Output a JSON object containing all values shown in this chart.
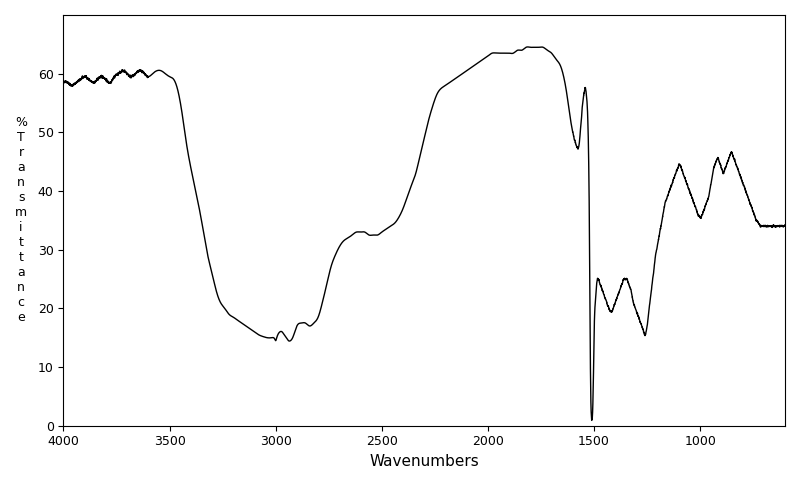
{
  "title": "",
  "xlabel": "Wavenumbers",
  "ylabel_lines": [
    "%",
    "T",
    "r",
    "a",
    "n",
    "s",
    "m",
    "i",
    "t",
    "t",
    "a",
    "n",
    "c",
    "e"
  ],
  "xlim": [
    4000,
    600
  ],
  "ylim": [
    0,
    70
  ],
  "xticks": [
    4000,
    3500,
    3000,
    2500,
    2000,
    1500,
    1000
  ],
  "yticks": [
    0,
    10,
    20,
    30,
    40,
    50,
    60
  ],
  "background_color": "#ffffff",
  "line_color": "#000000",
  "line_width": 1.0,
  "keypoints": [
    [
      4000,
      58.5
    ],
    [
      3980,
      58.5
    ],
    [
      3960,
      58.0
    ],
    [
      3940,
      58.5
    ],
    [
      3920,
      59.0
    ],
    [
      3900,
      59.5
    ],
    [
      3880,
      59.0
    ],
    [
      3860,
      58.5
    ],
    [
      3840,
      59.0
    ],
    [
      3820,
      59.5
    ],
    [
      3800,
      59.0
    ],
    [
      3780,
      58.5
    ],
    [
      3760,
      59.5
    ],
    [
      3740,
      60.0
    ],
    [
      3720,
      60.5
    ],
    [
      3700,
      60.0
    ],
    [
      3680,
      59.5
    ],
    [
      3660,
      60.0
    ],
    [
      3640,
      60.5
    ],
    [
      3620,
      60.0
    ],
    [
      3600,
      59.5
    ],
    [
      3580,
      60.0
    ],
    [
      3560,
      60.5
    ],
    [
      3540,
      60.5
    ],
    [
      3520,
      60.0
    ],
    [
      3500,
      59.5
    ],
    [
      3480,
      59.0
    ],
    [
      3460,
      57.0
    ],
    [
      3440,
      53.0
    ],
    [
      3420,
      48.0
    ],
    [
      3400,
      44.0
    ],
    [
      3380,
      40.5
    ],
    [
      3360,
      37.0
    ],
    [
      3340,
      33.0
    ],
    [
      3320,
      29.0
    ],
    [
      3300,
      26.0
    ],
    [
      3280,
      23.0
    ],
    [
      3260,
      21.0
    ],
    [
      3240,
      20.0
    ],
    [
      3220,
      19.0
    ],
    [
      3200,
      18.5
    ],
    [
      3180,
      18.0
    ],
    [
      3160,
      17.5
    ],
    [
      3140,
      17.0
    ],
    [
      3120,
      16.5
    ],
    [
      3100,
      16.0
    ],
    [
      3080,
      15.5
    ],
    [
      3060,
      15.2
    ],
    [
      3040,
      15.0
    ],
    [
      3020,
      15.0
    ],
    [
      3010,
      15.0
    ],
    [
      3005,
      14.8
    ],
    [
      3000,
      14.5
    ],
    [
      2995,
      15.0
    ],
    [
      2990,
      15.5
    ],
    [
      2980,
      16.0
    ],
    [
      2970,
      16.0
    ],
    [
      2960,
      15.5
    ],
    [
      2950,
      15.0
    ],
    [
      2940,
      14.5
    ],
    [
      2930,
      14.5
    ],
    [
      2920,
      15.0
    ],
    [
      2910,
      16.0
    ],
    [
      2900,
      17.0
    ],
    [
      2880,
      17.5
    ],
    [
      2860,
      17.5
    ],
    [
      2840,
      17.0
    ],
    [
      2820,
      17.5
    ],
    [
      2800,
      18.5
    ],
    [
      2780,
      21.0
    ],
    [
      2760,
      24.0
    ],
    [
      2740,
      27.0
    ],
    [
      2720,
      29.0
    ],
    [
      2700,
      30.5
    ],
    [
      2680,
      31.5
    ],
    [
      2660,
      32.0
    ],
    [
      2640,
      32.5
    ],
    [
      2620,
      33.0
    ],
    [
      2600,
      33.0
    ],
    [
      2580,
      33.0
    ],
    [
      2560,
      32.5
    ],
    [
      2540,
      32.5
    ],
    [
      2520,
      32.5
    ],
    [
      2500,
      33.0
    ],
    [
      2480,
      33.5
    ],
    [
      2460,
      34.0
    ],
    [
      2440,
      34.5
    ],
    [
      2420,
      35.5
    ],
    [
      2400,
      37.0
    ],
    [
      2380,
      39.0
    ],
    [
      2360,
      41.0
    ],
    [
      2340,
      43.0
    ],
    [
      2320,
      46.0
    ],
    [
      2300,
      49.0
    ],
    [
      2280,
      52.0
    ],
    [
      2260,
      54.5
    ],
    [
      2240,
      56.5
    ],
    [
      2220,
      57.5
    ],
    [
      2200,
      58.0
    ],
    [
      2180,
      58.5
    ],
    [
      2160,
      59.0
    ],
    [
      2140,
      59.5
    ],
    [
      2120,
      60.0
    ],
    [
      2100,
      60.5
    ],
    [
      2080,
      61.0
    ],
    [
      2060,
      61.5
    ],
    [
      2040,
      62.0
    ],
    [
      2020,
      62.5
    ],
    [
      2000,
      63.0
    ],
    [
      1980,
      63.5
    ],
    [
      1960,
      63.5
    ],
    [
      1940,
      63.5
    ],
    [
      1920,
      63.5
    ],
    [
      1900,
      63.5
    ],
    [
      1880,
      63.5
    ],
    [
      1860,
      64.0
    ],
    [
      1840,
      64.0
    ],
    [
      1820,
      64.5
    ],
    [
      1800,
      64.5
    ],
    [
      1780,
      64.5
    ],
    [
      1760,
      64.5
    ],
    [
      1740,
      64.5
    ],
    [
      1720,
      64.0
    ],
    [
      1700,
      63.5
    ],
    [
      1680,
      62.5
    ],
    [
      1660,
      61.5
    ],
    [
      1650,
      60.5
    ],
    [
      1640,
      59.0
    ],
    [
      1630,
      57.0
    ],
    [
      1620,
      54.5
    ],
    [
      1610,
      52.0
    ],
    [
      1600,
      50.0
    ],
    [
      1590,
      48.5
    ],
    [
      1580,
      47.5
    ],
    [
      1570,
      48.0
    ],
    [
      1565,
      50.0
    ],
    [
      1560,
      52.0
    ],
    [
      1555,
      54.5
    ],
    [
      1550,
      56.0
    ],
    [
      1545,
      57.0
    ],
    [
      1540,
      57.5
    ],
    [
      1535,
      56.0
    ],
    [
      1530,
      53.0
    ],
    [
      1525,
      45.0
    ],
    [
      1522,
      35.0
    ],
    [
      1520,
      25.0
    ],
    [
      1518,
      15.0
    ],
    [
      1516,
      7.0
    ],
    [
      1514,
      3.0
    ],
    [
      1512,
      1.5
    ],
    [
      1510,
      1.0
    ],
    [
      1508,
      1.5
    ],
    [
      1506,
      3.0
    ],
    [
      1504,
      6.0
    ],
    [
      1502,
      10.0
    ],
    [
      1500,
      15.0
    ],
    [
      1498,
      18.0
    ],
    [
      1496,
      20.0
    ],
    [
      1494,
      21.0
    ],
    [
      1492,
      22.0
    ],
    [
      1490,
      23.0
    ],
    [
      1488,
      24.0
    ],
    [
      1486,
      24.5
    ],
    [
      1484,
      25.0
    ],
    [
      1482,
      25.0
    ],
    [
      1480,
      25.0
    ],
    [
      1475,
      24.5
    ],
    [
      1470,
      24.0
    ],
    [
      1465,
      23.5
    ],
    [
      1460,
      23.0
    ],
    [
      1455,
      22.5
    ],
    [
      1450,
      22.0
    ],
    [
      1445,
      21.5
    ],
    [
      1440,
      21.0
    ],
    [
      1435,
      20.5
    ],
    [
      1430,
      20.0
    ],
    [
      1425,
      19.5
    ],
    [
      1420,
      19.5
    ],
    [
      1415,
      19.5
    ],
    [
      1410,
      20.0
    ],
    [
      1405,
      20.5
    ],
    [
      1400,
      21.0
    ],
    [
      1395,
      21.5
    ],
    [
      1390,
      22.0
    ],
    [
      1385,
      22.5
    ],
    [
      1380,
      23.0
    ],
    [
      1375,
      23.5
    ],
    [
      1370,
      24.0
    ],
    [
      1365,
      24.5
    ],
    [
      1360,
      25.0
    ],
    [
      1355,
      25.0
    ],
    [
      1350,
      25.0
    ],
    [
      1345,
      25.0
    ],
    [
      1340,
      24.5
    ],
    [
      1335,
      24.0
    ],
    [
      1330,
      23.5
    ],
    [
      1325,
      23.0
    ],
    [
      1320,
      22.0
    ],
    [
      1315,
      21.0
    ],
    [
      1310,
      20.5
    ],
    [
      1305,
      20.0
    ],
    [
      1300,
      19.5
    ],
    [
      1295,
      19.0
    ],
    [
      1290,
      18.5
    ],
    [
      1285,
      18.0
    ],
    [
      1280,
      17.5
    ],
    [
      1275,
      17.0
    ],
    [
      1270,
      16.5
    ],
    [
      1265,
      16.0
    ],
    [
      1260,
      15.5
    ],
    [
      1255,
      16.0
    ],
    [
      1250,
      17.0
    ],
    [
      1245,
      18.5
    ],
    [
      1240,
      20.0
    ],
    [
      1235,
      21.5
    ],
    [
      1230,
      23.0
    ],
    [
      1225,
      24.5
    ],
    [
      1220,
      26.0
    ],
    [
      1215,
      27.5
    ],
    [
      1210,
      29.0
    ],
    [
      1205,
      30.0
    ],
    [
      1200,
      31.0
    ],
    [
      1195,
      32.0
    ],
    [
      1190,
      33.0
    ],
    [
      1185,
      34.0
    ],
    [
      1180,
      35.0
    ],
    [
      1175,
      36.0
    ],
    [
      1170,
      37.0
    ],
    [
      1165,
      38.0
    ],
    [
      1160,
      38.5
    ],
    [
      1155,
      39.0
    ],
    [
      1150,
      39.5
    ],
    [
      1145,
      40.0
    ],
    [
      1140,
      40.5
    ],
    [
      1135,
      41.0
    ],
    [
      1130,
      41.5
    ],
    [
      1125,
      42.0
    ],
    [
      1120,
      42.5
    ],
    [
      1115,
      43.0
    ],
    [
      1110,
      43.5
    ],
    [
      1105,
      44.0
    ],
    [
      1100,
      44.5
    ],
    [
      1095,
      44.5
    ],
    [
      1090,
      44.0
    ],
    [
      1085,
      43.5
    ],
    [
      1080,
      43.0
    ],
    [
      1075,
      42.5
    ],
    [
      1070,
      42.0
    ],
    [
      1065,
      41.5
    ],
    [
      1060,
      41.0
    ],
    [
      1055,
      40.5
    ],
    [
      1050,
      40.0
    ],
    [
      1045,
      39.5
    ],
    [
      1040,
      39.0
    ],
    [
      1035,
      38.5
    ],
    [
      1030,
      38.0
    ],
    [
      1025,
      37.5
    ],
    [
      1020,
      37.0
    ],
    [
      1015,
      36.5
    ],
    [
      1010,
      36.0
    ],
    [
      1005,
      35.8
    ],
    [
      1000,
      35.5
    ],
    [
      995,
      35.5
    ],
    [
      990,
      36.0
    ],
    [
      985,
      36.5
    ],
    [
      980,
      37.0
    ],
    [
      975,
      37.5
    ],
    [
      970,
      38.0
    ],
    [
      965,
      38.5
    ],
    [
      960,
      39.0
    ],
    [
      955,
      40.0
    ],
    [
      950,
      41.0
    ],
    [
      945,
      42.0
    ],
    [
      940,
      43.0
    ],
    [
      935,
      44.0
    ],
    [
      930,
      44.5
    ],
    [
      925,
      45.0
    ],
    [
      920,
      45.5
    ],
    [
      915,
      45.5
    ],
    [
      910,
      45.0
    ],
    [
      905,
      44.5
    ],
    [
      900,
      44.0
    ],
    [
      895,
      43.5
    ],
    [
      890,
      43.0
    ],
    [
      885,
      43.5
    ],
    [
      880,
      44.0
    ],
    [
      875,
      44.5
    ],
    [
      870,
      45.0
    ],
    [
      865,
      45.5
    ],
    [
      860,
      46.0
    ],
    [
      855,
      46.5
    ],
    [
      850,
      46.5
    ],
    [
      845,
      46.0
    ],
    [
      840,
      45.5
    ],
    [
      835,
      45.0
    ],
    [
      830,
      44.5
    ],
    [
      825,
      44.0
    ],
    [
      820,
      43.5
    ],
    [
      815,
      43.0
    ],
    [
      810,
      42.5
    ],
    [
      805,
      42.0
    ],
    [
      800,
      41.5
    ],
    [
      795,
      41.0
    ],
    [
      790,
      40.5
    ],
    [
      785,
      40.0
    ],
    [
      780,
      39.5
    ],
    [
      775,
      39.0
    ],
    [
      770,
      38.5
    ],
    [
      765,
      38.0
    ],
    [
      760,
      37.5
    ],
    [
      755,
      37.0
    ],
    [
      750,
      36.5
    ],
    [
      745,
      36.0
    ],
    [
      740,
      35.5
    ],
    [
      735,
      35.0
    ],
    [
      730,
      34.8
    ],
    [
      725,
      34.5
    ],
    [
      720,
      34.3
    ],
    [
      715,
      34.0
    ],
    [
      710,
      34.0
    ],
    [
      705,
      34.0
    ],
    [
      700,
      34.0
    ],
    [
      695,
      34.0
    ],
    [
      690,
      34.0
    ],
    [
      685,
      34.0
    ],
    [
      680,
      34.0
    ],
    [
      675,
      34.0
    ],
    [
      670,
      34.0
    ],
    [
      665,
      34.0
    ],
    [
      660,
      34.0
    ],
    [
      655,
      34.0
    ],
    [
      650,
      34.0
    ],
    [
      645,
      34.0
    ],
    [
      640,
      34.0
    ],
    [
      635,
      34.0
    ],
    [
      630,
      34.0
    ],
    [
      625,
      34.0
    ],
    [
      620,
      34.0
    ],
    [
      615,
      34.0
    ],
    [
      610,
      34.0
    ],
    [
      605,
      34.0
    ],
    [
      600,
      34.0
    ]
  ]
}
